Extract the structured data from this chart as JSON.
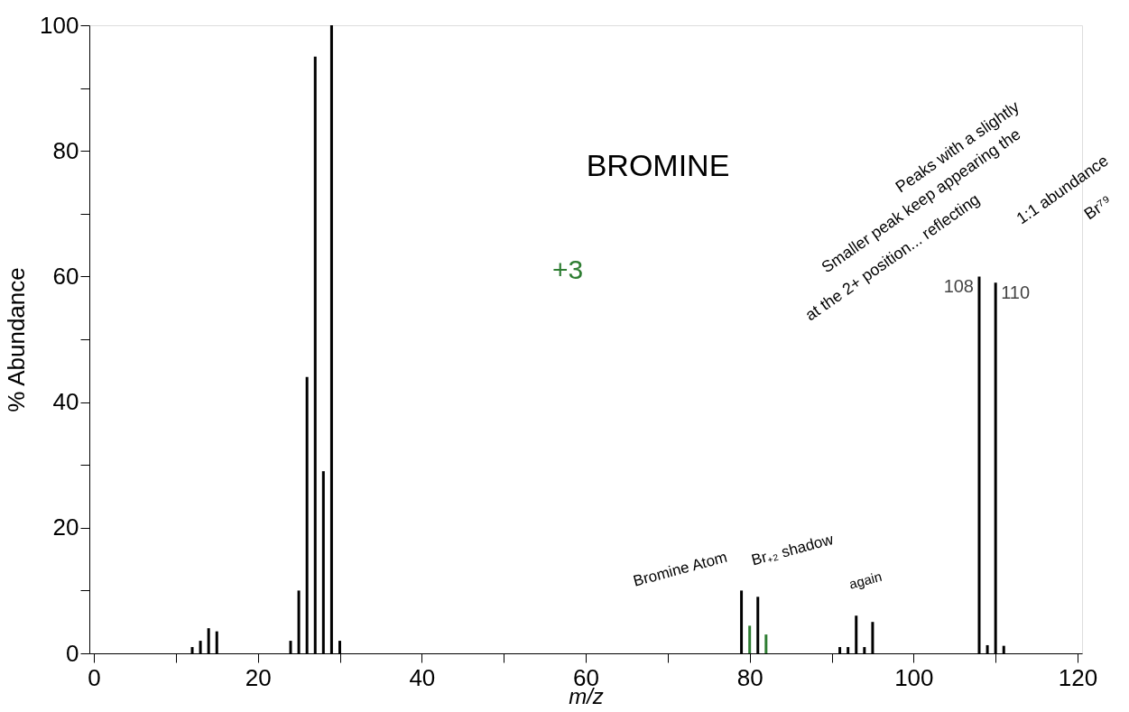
{
  "chart_data": {
    "type": "bar",
    "xlabel": "m/z",
    "ylabel": "% Abundance",
    "x": [
      12,
      13,
      14,
      15,
      24,
      25,
      26,
      27,
      28,
      29,
      30,
      79,
      80,
      81,
      82,
      91,
      92,
      93,
      94,
      95,
      108,
      109,
      110,
      111
    ],
    "values": [
      1,
      2,
      4,
      3.5,
      2,
      10,
      44,
      95,
      29,
      100,
      2,
      10,
      4.4,
      9,
      3,
      1,
      1,
      6,
      1,
      5,
      60,
      1.3,
      59,
      1.2
    ],
    "colors": [
      "#000000",
      "#000000",
      "#000000",
      "#000000",
      "#000000",
      "#000000",
      "#000000",
      "#000000",
      "#000000",
      "#000000",
      "#000000",
      "#000000",
      "#2e7d32",
      "#000000",
      "#2e7d32",
      "#000000",
      "#000000",
      "#000000",
      "#000000",
      "#000000",
      "#000000",
      "#000000",
      "#000000",
      "#000000"
    ],
    "xlim": [
      0,
      120
    ],
    "xticks": [
      0,
      {
        "value": 10,
        "label": null
      },
      20,
      {
        "value": 30,
        "label": null
      },
      40,
      {
        "value": 50,
        "label": null
      },
      60,
      {
        "value": 70,
        "label": null
      },
      80,
      {
        "value": 90,
        "label": null
      },
      100,
      {
        "value": 110,
        "label": null
      },
      120
    ],
    "ylim": [
      0,
      100
    ],
    "yticks": [
      0,
      {
        "value": 10,
        "label": null
      },
      20,
      {
        "value": 30,
        "label": null
      },
      40,
      {
        "value": 50,
        "label": null
      },
      60,
      {
        "value": 70,
        "label": null
      },
      80,
      {
        "value": 90,
        "label": null
      },
      100
    ],
    "grid": false,
    "annotations": [
      "BROMINE",
      "+3",
      "Peaks with a slightly",
      "Smaller peak keep appearing the",
      "at the 2+ position... reflecting",
      "1:1 abundance",
      "Br⁷⁹",
      {
        "text": "Bromine Atom",
        "x": 79,
        "y": 10
      },
      {
        "text": "Br₊₂ shadow",
        "x": 81,
        "y": 9
      },
      {
        "text": "again",
        "x": 93,
        "y": 6
      },
      {
        "text": "108",
        "x": 108,
        "y": 60
      },
      {
        "text": "110",
        "x": 110,
        "y": 59
      }
    ]
  }
}
